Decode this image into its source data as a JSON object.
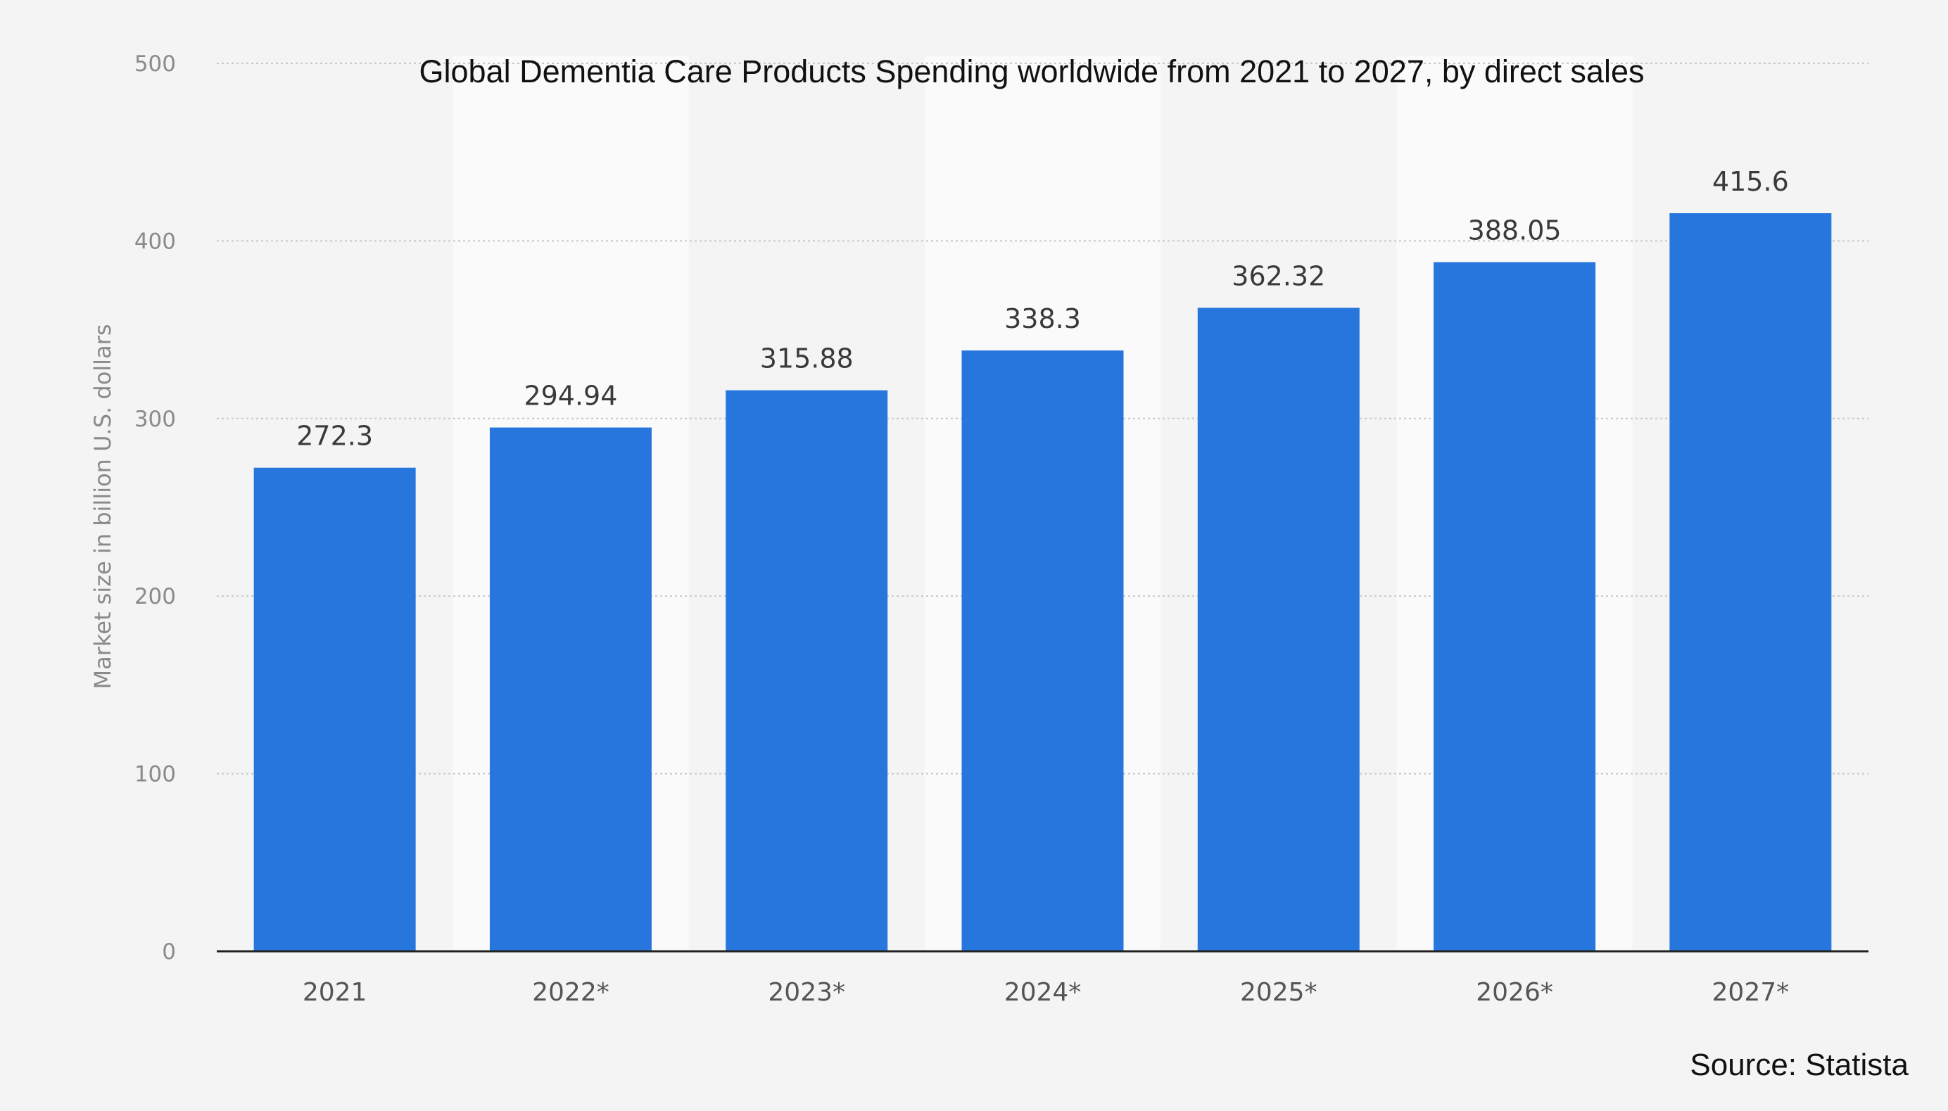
{
  "chart_data": {
    "type": "bar",
    "title": "Global Dementia Care Products Spending worldwide from 2021 to 2027, by direct sales",
    "xlabel": "",
    "ylabel": "Market size in billion U.S. dollars",
    "categories": [
      "2021",
      "2022*",
      "2023*",
      "2024*",
      "2025*",
      "2026*",
      "2027*"
    ],
    "values": [
      272.3,
      294.94,
      315.88,
      338.3,
      362.32,
      388.05,
      415.6
    ],
    "value_labels": [
      "272.3",
      "294.94",
      "315.88",
      "338.3",
      "362.32",
      "388.05",
      "415.6"
    ],
    "ylim": [
      0,
      500
    ],
    "yticks": [
      0,
      100,
      200,
      300,
      400,
      500
    ],
    "ytick_labels": [
      "0",
      "100",
      "200",
      "300",
      "400",
      "500"
    ],
    "grid": true,
    "legend": "none",
    "bar_color": "#2776de",
    "alternating_band_color": "#fafafa"
  },
  "source": "Source: Statista"
}
